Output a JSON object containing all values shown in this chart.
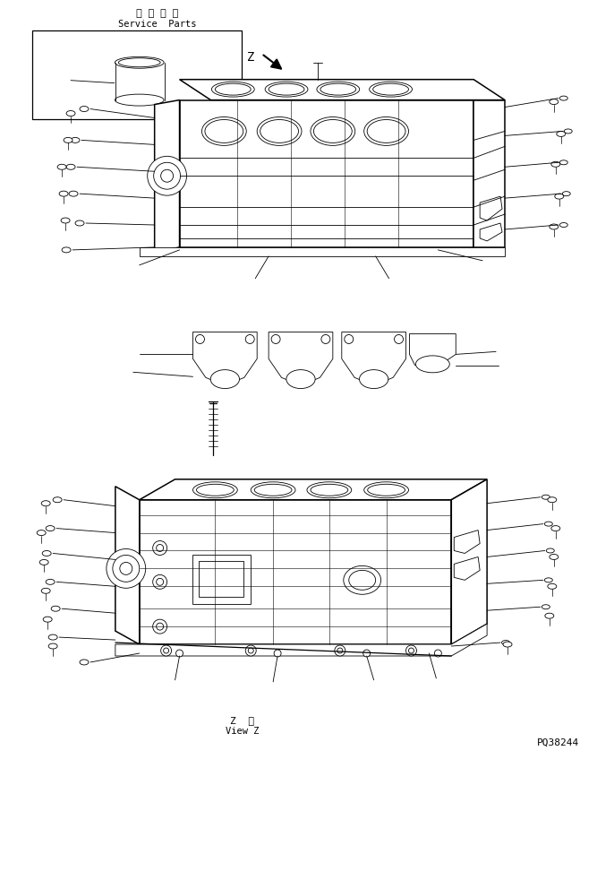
{
  "title_jp": "補 給 専 用",
  "title_en": "Service  Parts",
  "bottom_text_jp": "Z  視",
  "bottom_text_en": "View Z",
  "part_number": "PQ38244",
  "bg_color": "#ffffff",
  "line_color": "#000000",
  "fig_width": 6.67,
  "fig_height": 9.82,
  "dpi": 100
}
